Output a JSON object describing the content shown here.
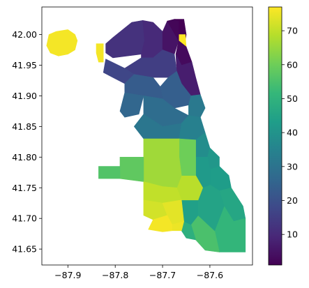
{
  "chart_data": {
    "type": "choropleth",
    "title": "",
    "xlabel": "",
    "ylabel": "",
    "xlim": [
      -87.955,
      -87.51
    ],
    "ylim": [
      41.624,
      42.045
    ],
    "x_ticks": [
      -87.9,
      -87.8,
      -87.7,
      -87.6
    ],
    "y_ticks": [
      41.65,
      41.7,
      41.75,
      41.8,
      41.85,
      41.9,
      41.95,
      42.0
    ],
    "x_tick_labels": [
      "−87.9",
      "−87.8",
      "−87.7",
      "−87.6"
    ],
    "y_tick_labels": [
      "41.65",
      "41.70",
      "41.75",
      "41.80",
      "41.85",
      "41.90",
      "41.95",
      "42.00"
    ],
    "grid": false,
    "colorbar": {
      "cmap": "viridis",
      "vmin": 1,
      "vmax": 77,
      "ticks": [
        10,
        20,
        30,
        40,
        50,
        60,
        70
      ],
      "tick_labels": [
        "10",
        "20",
        "30",
        "40",
        "50",
        "60",
        "70"
      ],
      "colors": [
        "#440154",
        "#482878",
        "#3e4989",
        "#31688e",
        "#26828e",
        "#1f9e89",
        "#35b779",
        "#6ece58",
        "#b5de2b",
        "#fde725"
      ]
    },
    "regions": [
      {
        "value": 76,
        "polygon": [
          [
            -87.94,
            42.0
          ],
          [
            -87.925,
            42.005
          ],
          [
            -87.9,
            42.008
          ],
          [
            -87.885,
            42.0
          ],
          [
            -87.88,
            41.99
          ],
          [
            -87.885,
            41.975
          ],
          [
            -87.9,
            41.968
          ],
          [
            -87.92,
            41.965
          ],
          [
            -87.937,
            41.97
          ],
          [
            -87.945,
            41.982
          ]
        ]
      },
      {
        "value": 76,
        "polygon": [
          [
            -87.84,
            41.985
          ],
          [
            -87.825,
            41.985
          ],
          [
            -87.825,
            41.955
          ],
          [
            -87.835,
            41.955
          ],
          [
            -87.84,
            41.97
          ]
        ]
      },
      {
        "value": 12,
        "polygon": [
          [
            -87.805,
            41.995
          ],
          [
            -87.765,
            42.02
          ],
          [
            -87.742,
            42.023
          ],
          [
            -87.738,
            41.99
          ],
          [
            -87.745,
            41.968
          ],
          [
            -87.805,
            41.962
          ],
          [
            -87.82,
            41.97
          ],
          [
            -87.82,
            41.985
          ]
        ]
      },
      {
        "value": 10,
        "polygon": [
          [
            -87.742,
            42.023
          ],
          [
            -87.72,
            42.02
          ],
          [
            -87.7,
            42.005
          ],
          [
            -87.7,
            41.975
          ],
          [
            -87.72,
            41.962
          ],
          [
            -87.745,
            41.962
          ],
          [
            -87.745,
            41.968
          ],
          [
            -87.738,
            41.99
          ]
        ]
      },
      {
        "value": 5,
        "polygon": [
          [
            -87.7,
            42.005
          ],
          [
            -87.69,
            42.022
          ],
          [
            -87.668,
            42.023
          ],
          [
            -87.666,
            41.99
          ],
          [
            -87.675,
            41.968
          ],
          [
            -87.7,
            41.975
          ]
        ]
      },
      {
        "value": 2,
        "polygon": [
          [
            -87.69,
            42.022
          ],
          [
            -87.675,
            42.025
          ],
          [
            -87.665,
            42.022
          ],
          [
            -87.666,
            41.99
          ]
        ]
      },
      {
        "value": 1,
        "polygon": [
          [
            -87.675,
            42.025
          ],
          [
            -87.655,
            42.025
          ],
          [
            -87.65,
            42.0
          ],
          [
            -87.652,
            41.99
          ],
          [
            -87.666,
            41.99
          ],
          [
            -87.665,
            42.022
          ]
        ]
      },
      {
        "value": 77,
        "polygon": [
          [
            -87.665,
            42.0
          ],
          [
            -87.652,
            42.0
          ],
          [
            -87.65,
            41.98
          ],
          [
            -87.665,
            41.98
          ]
        ]
      },
      {
        "value": 3,
        "polygon": [
          [
            -87.666,
            41.99
          ],
          [
            -87.65,
            41.98
          ],
          [
            -87.638,
            41.955
          ],
          [
            -87.66,
            41.95
          ],
          [
            -87.672,
            41.968
          ]
        ]
      },
      {
        "value": 7,
        "polygon": [
          [
            -87.672,
            41.968
          ],
          [
            -87.66,
            41.95
          ],
          [
            -87.638,
            41.955
          ],
          [
            -87.63,
            41.93
          ],
          [
            -87.62,
            41.902
          ],
          [
            -87.64,
            41.9
          ],
          [
            -87.66,
            41.92
          ],
          [
            -87.67,
            41.94
          ]
        ]
      },
      {
        "value": 15,
        "polygon": [
          [
            -87.745,
            41.962
          ],
          [
            -87.72,
            41.962
          ],
          [
            -87.7,
            41.975
          ],
          [
            -87.675,
            41.968
          ],
          [
            -87.67,
            41.94
          ],
          [
            -87.688,
            41.93
          ],
          [
            -87.72,
            41.93
          ],
          [
            -87.76,
            41.935
          ],
          [
            -87.78,
            41.945
          ]
        ]
      },
      {
        "value": 17,
        "polygon": [
          [
            -87.82,
            41.96
          ],
          [
            -87.78,
            41.945
          ],
          [
            -87.76,
            41.935
          ],
          [
            -87.78,
            41.92
          ],
          [
            -87.805,
            41.93
          ],
          [
            -87.825,
            41.938
          ]
        ]
      },
      {
        "value": 24,
        "polygon": [
          [
            -87.688,
            41.93
          ],
          [
            -87.67,
            41.94
          ],
          [
            -87.66,
            41.92
          ],
          [
            -87.64,
            41.9
          ],
          [
            -87.645,
            41.885
          ],
          [
            -87.675,
            41.88
          ],
          [
            -87.7,
            41.895
          ],
          [
            -87.705,
            41.915
          ]
        ]
      },
      {
        "value": 23,
        "polygon": [
          [
            -87.76,
            41.935
          ],
          [
            -87.72,
            41.93
          ],
          [
            -87.705,
            41.915
          ],
          [
            -87.7,
            41.895
          ],
          [
            -87.74,
            41.9
          ],
          [
            -87.78,
            41.905
          ],
          [
            -87.78,
            41.92
          ]
        ]
      },
      {
        "value": 26,
        "polygon": [
          [
            -87.78,
            41.905
          ],
          [
            -87.74,
            41.9
          ],
          [
            -87.75,
            41.87
          ],
          [
            -87.78,
            41.865
          ],
          [
            -87.79,
            41.875
          ]
        ]
      },
      {
        "value": 32,
        "polygon": [
          [
            -87.645,
            41.885
          ],
          [
            -87.64,
            41.9
          ],
          [
            -87.62,
            41.902
          ],
          [
            -87.61,
            41.88
          ],
          [
            -87.62,
            41.865
          ],
          [
            -87.645,
            41.868
          ]
        ]
      },
      {
        "value": 28,
        "polygon": [
          [
            -87.7,
            41.895
          ],
          [
            -87.675,
            41.88
          ],
          [
            -87.645,
            41.868
          ],
          [
            -87.66,
            41.855
          ],
          [
            -87.7,
            41.85
          ],
          [
            -87.74,
            41.87
          ],
          [
            -87.74,
            41.9
          ]
        ]
      },
      {
        "value": 31,
        "polygon": [
          [
            -87.74,
            41.87
          ],
          [
            -87.7,
            41.85
          ],
          [
            -87.66,
            41.855
          ],
          [
            -87.665,
            41.83
          ],
          [
            -87.74,
            41.83
          ],
          [
            -87.76,
            41.85
          ]
        ]
      },
      {
        "value": 34,
        "polygon": [
          [
            -87.645,
            41.868
          ],
          [
            -87.62,
            41.865
          ],
          [
            -87.61,
            41.84
          ],
          [
            -87.63,
            41.828
          ],
          [
            -87.665,
            41.83
          ],
          [
            -87.66,
            41.855
          ]
        ]
      },
      {
        "value": 38,
        "polygon": [
          [
            -87.63,
            41.828
          ],
          [
            -87.61,
            41.84
          ],
          [
            -87.6,
            41.815
          ],
          [
            -87.605,
            41.8
          ],
          [
            -87.63,
            41.8
          ]
        ]
      },
      {
        "value": 41,
        "polygon": [
          [
            -87.605,
            41.8
          ],
          [
            -87.6,
            41.815
          ],
          [
            -87.58,
            41.8
          ],
          [
            -87.58,
            41.785
          ],
          [
            -87.6,
            41.78
          ]
        ]
      },
      {
        "value": 43,
        "polygon": [
          [
            -87.6,
            41.78
          ],
          [
            -87.58,
            41.785
          ],
          [
            -87.56,
            41.77
          ],
          [
            -87.555,
            41.75
          ],
          [
            -87.58,
            41.745
          ],
          [
            -87.6,
            41.755
          ]
        ]
      },
      {
        "value": 46,
        "polygon": [
          [
            -87.58,
            41.745
          ],
          [
            -87.555,
            41.75
          ],
          [
            -87.53,
            41.72
          ],
          [
            -87.525,
            41.7
          ],
          [
            -87.55,
            41.695
          ],
          [
            -87.57,
            41.72
          ]
        ]
      },
      {
        "value": 51,
        "polygon": [
          [
            -87.57,
            41.72
          ],
          [
            -87.55,
            41.695
          ],
          [
            -87.525,
            41.7
          ],
          [
            -87.525,
            41.645
          ],
          [
            -87.58,
            41.645
          ],
          [
            -87.59,
            41.68
          ]
        ]
      },
      {
        "value": 55,
        "polygon": [
          [
            -87.59,
            41.68
          ],
          [
            -87.58,
            41.645
          ],
          [
            -87.61,
            41.648
          ],
          [
            -87.63,
            41.665
          ],
          [
            -87.64,
            41.69
          ],
          [
            -87.625,
            41.705
          ]
        ]
      },
      {
        "value": 49,
        "polygon": [
          [
            -87.64,
            41.69
          ],
          [
            -87.63,
            41.665
          ],
          [
            -87.65,
            41.668
          ],
          [
            -87.66,
            41.68
          ],
          [
            -87.655,
            41.695
          ]
        ]
      },
      {
        "value": 44,
        "polygon": [
          [
            -87.625,
            41.705
          ],
          [
            -87.64,
            41.69
          ],
          [
            -87.655,
            41.695
          ],
          [
            -87.66,
            41.73
          ],
          [
            -87.625,
            41.73
          ]
        ]
      },
      {
        "value": 45,
        "polygon": [
          [
            -87.6,
            41.755
          ],
          [
            -87.58,
            41.745
          ],
          [
            -87.57,
            41.72
          ],
          [
            -87.59,
            41.68
          ],
          [
            -87.625,
            41.705
          ],
          [
            -87.625,
            41.73
          ],
          [
            -87.615,
            41.75
          ]
        ]
      },
      {
        "value": 42,
        "polygon": [
          [
            -87.63,
            41.8
          ],
          [
            -87.605,
            41.8
          ],
          [
            -87.6,
            41.78
          ],
          [
            -87.6,
            41.755
          ],
          [
            -87.615,
            41.75
          ],
          [
            -87.63,
            41.77
          ]
        ]
      },
      {
        "value": 69,
        "polygon": [
          [
            -87.66,
            41.77
          ],
          [
            -87.63,
            41.77
          ],
          [
            -87.615,
            41.75
          ],
          [
            -87.625,
            41.73
          ],
          [
            -87.66,
            41.73
          ],
          [
            -87.67,
            41.75
          ]
        ]
      },
      {
        "value": 60,
        "polygon": [
          [
            -87.665,
            41.83
          ],
          [
            -87.63,
            41.828
          ],
          [
            -87.63,
            41.8
          ],
          [
            -87.63,
            41.77
          ],
          [
            -87.66,
            41.77
          ],
          [
            -87.665,
            41.8
          ]
        ]
      },
      {
        "value": 66,
        "polygon": [
          [
            -87.74,
            41.83
          ],
          [
            -87.665,
            41.83
          ],
          [
            -87.665,
            41.8
          ],
          [
            -87.66,
            41.77
          ],
          [
            -87.67,
            41.75
          ],
          [
            -87.7,
            41.752
          ],
          [
            -87.74,
            41.76
          ]
        ]
      },
      {
        "value": 58,
        "polygon": [
          [
            -87.79,
            41.8
          ],
          [
            -87.74,
            41.8
          ],
          [
            -87.74,
            41.76
          ],
          [
            -87.79,
            41.765
          ]
        ]
      },
      {
        "value": 56,
        "polygon": [
          [
            -87.835,
            41.785
          ],
          [
            -87.79,
            41.785
          ],
          [
            -87.79,
            41.765
          ],
          [
            -87.835,
            41.765
          ]
        ]
      },
      {
        "value": 70,
        "polygon": [
          [
            -87.74,
            41.76
          ],
          [
            -87.7,
            41.752
          ],
          [
            -87.67,
            41.75
          ],
          [
            -87.66,
            41.73
          ],
          [
            -87.7,
            41.725
          ],
          [
            -87.74,
            41.73
          ]
        ]
      },
      {
        "value": 72,
        "polygon": [
          [
            -87.74,
            41.73
          ],
          [
            -87.7,
            41.725
          ],
          [
            -87.69,
            41.705
          ],
          [
            -87.72,
            41.698
          ],
          [
            -87.74,
            41.705
          ]
        ]
      },
      {
        "value": 74,
        "polygon": [
          [
            -87.7,
            41.725
          ],
          [
            -87.66,
            41.73
          ],
          [
            -87.655,
            41.695
          ],
          [
            -87.68,
            41.69
          ],
          [
            -87.69,
            41.705
          ]
        ]
      },
      {
        "value": 75,
        "polygon": [
          [
            -87.68,
            41.69
          ],
          [
            -87.655,
            41.695
          ],
          [
            -87.66,
            41.68
          ],
          [
            -87.68,
            41.68
          ]
        ]
      },
      {
        "value": 76,
        "polygon": [
          [
            -87.72,
            41.698
          ],
          [
            -87.69,
            41.705
          ],
          [
            -87.68,
            41.69
          ],
          [
            -87.68,
            41.68
          ],
          [
            -87.7,
            41.678
          ],
          [
            -87.73,
            41.682
          ]
        ]
      }
    ]
  }
}
